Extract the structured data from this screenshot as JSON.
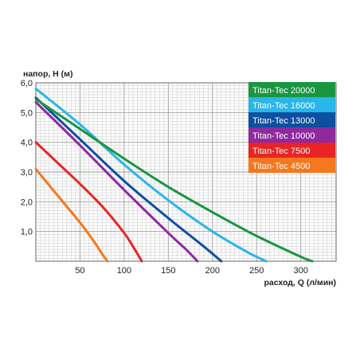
{
  "chart_data": {
    "type": "line",
    "xlabel": "расход, Q (л/мин)",
    "ylabel": "напор, H (м)",
    "xlim": [
      0,
      340
    ],
    "ylim": [
      0,
      6.0
    ],
    "x_ticks": [
      50,
      100,
      150,
      200,
      250,
      300
    ],
    "x_tick_labels": [
      "50",
      "100",
      "150",
      "200",
      "250",
      "300"
    ],
    "y_ticks": [
      1.0,
      2.0,
      3.0,
      4.0,
      5.0,
      6.0
    ],
    "y_tick_labels": [
      "1,0",
      "2,0",
      "3,0",
      "4,0",
      "5,0",
      "6,0"
    ],
    "grid": true,
    "legend_position": "top-right",
    "series": [
      {
        "name": "Titan-Tec 20000",
        "color": "#1a9641",
        "x": [
          0,
          50,
          100,
          150,
          200,
          250,
          300,
          313
        ],
        "y": [
          5.45,
          4.45,
          3.45,
          2.5,
          1.65,
          0.85,
          0.15,
          0
        ]
      },
      {
        "name": "Titan-Tec 16000",
        "color": "#29b6e8",
        "x": [
          0,
          50,
          100,
          150,
          200,
          240,
          261
        ],
        "y": [
          5.8,
          4.6,
          3.25,
          2.05,
          1.0,
          0.3,
          0
        ]
      },
      {
        "name": "Titan-Tec 13000",
        "color": "#0d4fa0",
        "x": [
          0,
          50,
          100,
          150,
          190,
          210
        ],
        "y": [
          5.5,
          4.1,
          2.7,
          1.45,
          0.5,
          0
        ]
      },
      {
        "name": "Titan-Tec 10000",
        "color": "#8e2a9e",
        "x": [
          0,
          50,
          100,
          150,
          170,
          183
        ],
        "y": [
          5.35,
          3.9,
          2.4,
          0.95,
          0.4,
          0
        ]
      },
      {
        "name": "Titan-Tec 7500",
        "color": "#e82424",
        "x": [
          0,
          25,
          50,
          75,
          100,
          112,
          120
        ],
        "y": [
          4.0,
          3.3,
          2.6,
          1.85,
          0.95,
          0.4,
          0
        ]
      },
      {
        "name": "Titan-Tec 4500",
        "color": "#f5781e",
        "x": [
          0,
          25,
          50,
          65,
          75,
          81
        ],
        "y": [
          3.1,
          2.2,
          1.3,
          0.7,
          0.25,
          0
        ]
      }
    ]
  }
}
